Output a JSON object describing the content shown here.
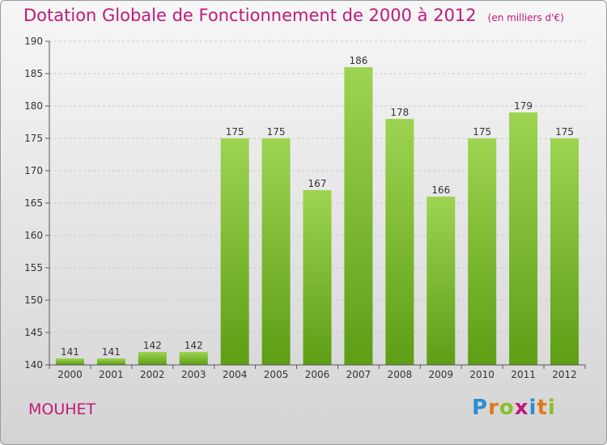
{
  "chart_data": {
    "type": "bar",
    "title": "Dotation Globale de Fonctionnement de 2000 à 2012",
    "subtitle": "(en milliers d'€)",
    "categories": [
      "2000",
      "2001",
      "2002",
      "2003",
      "2004",
      "2005",
      "2006",
      "2007",
      "2008",
      "2009",
      "2010",
      "2011",
      "2012"
    ],
    "values": [
      141,
      141,
      142,
      142,
      175,
      175,
      167,
      186,
      178,
      166,
      175,
      179,
      175
    ],
    "ylim": [
      140,
      190
    ],
    "yticks": [
      140,
      145,
      150,
      155,
      160,
      165,
      170,
      175,
      180,
      185,
      190
    ],
    "grid": true,
    "bar_color": "#7cb82f"
  },
  "commune": "MOUHET",
  "logo": "Proxiti"
}
